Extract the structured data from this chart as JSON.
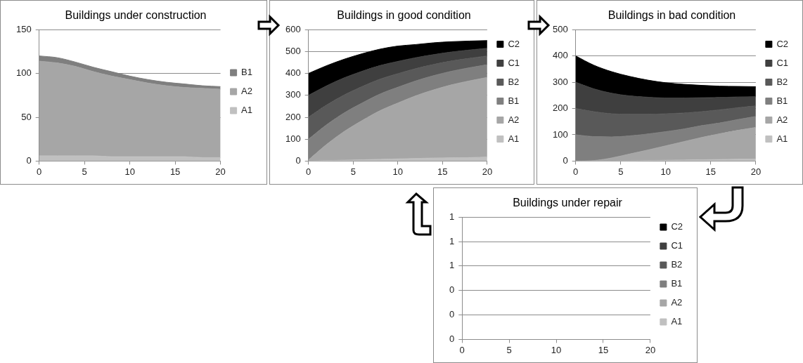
{
  "chart_data": [
    {
      "type": "area",
      "stacked": true,
      "title": "Buildings under construction",
      "x": [
        0,
        2,
        4,
        6,
        8,
        10,
        12,
        14,
        16,
        18,
        20
      ],
      "xlim": [
        0,
        20
      ],
      "xticks": [
        0,
        5,
        10,
        15,
        20
      ],
      "ylim": [
        0,
        150
      ],
      "yticks": [
        0,
        50,
        100,
        150
      ],
      "grid": "y",
      "legend": "right",
      "series": [
        {
          "name": "A1",
          "color": "#c0c0c0",
          "values": [
            6,
            6,
            6,
            6,
            5,
            5,
            5,
            5,
            5,
            4,
            4
          ]
        },
        {
          "name": "A2",
          "color": "#a6a6a6",
          "values": [
            108,
            106,
            102,
            96,
            92,
            88,
            84,
            81,
            79,
            79,
            78
          ]
        },
        {
          "name": "B1",
          "color": "#7f7f7f",
          "values": [
            6,
            6,
            5,
            5,
            5,
            4,
            4,
            4,
            4,
            3,
            3
          ]
        }
      ]
    },
    {
      "type": "area",
      "stacked": true,
      "title": "Buildings in good condition",
      "x": [
        0,
        2,
        4,
        6,
        8,
        10,
        12,
        14,
        16,
        18,
        20
      ],
      "xlim": [
        0,
        20
      ],
      "xticks": [
        0,
        5,
        10,
        15,
        20
      ],
      "ylim": [
        0,
        600
      ],
      "yticks": [
        0,
        100,
        200,
        300,
        400,
        500,
        600
      ],
      "grid": "y",
      "legend": "right",
      "series": [
        {
          "name": "A1",
          "color": "#c0c0c0",
          "values": [
            0,
            2,
            4,
            6,
            8,
            10,
            12,
            14,
            15,
            16,
            18
          ]
        },
        {
          "name": "A2",
          "color": "#a6a6a6",
          "values": [
            5,
            73,
            131,
            179,
            222,
            255,
            286,
            311,
            333,
            350,
            364
          ]
        },
        {
          "name": "B1",
          "color": "#7f7f7f",
          "values": [
            95,
            90,
            85,
            80,
            76,
            72,
            68,
            65,
            62,
            60,
            58
          ]
        },
        {
          "name": "B2",
          "color": "#595959",
          "values": [
            100,
            90,
            82,
            75,
            68,
            62,
            56,
            51,
            47,
            43,
            40
          ]
        },
        {
          "name": "C1",
          "color": "#3f3f3f",
          "values": [
            100,
            88,
            78,
            70,
            62,
            56,
            50,
            45,
            41,
            38,
            35
          ]
        },
        {
          "name": "C2",
          "color": "#000000",
          "values": [
            100,
            92,
            85,
            80,
            75,
            70,
            60,
            54,
            47,
            41,
            35
          ]
        }
      ]
    },
    {
      "type": "area",
      "stacked": true,
      "title": "Buildings in bad condition",
      "x": [
        0,
        2,
        4,
        6,
        8,
        10,
        12,
        14,
        16,
        18,
        20
      ],
      "xlim": [
        0,
        20
      ],
      "xticks": [
        0,
        5,
        10,
        15,
        20
      ],
      "ylim": [
        0,
        500
      ],
      "yticks": [
        0,
        100,
        200,
        300,
        400,
        500
      ],
      "grid": "y",
      "legend": "right",
      "series": [
        {
          "name": "A1",
          "color": "#c0c0c0",
          "values": [
            0,
            0,
            0,
            1,
            2,
            3,
            4,
            5,
            6,
            7,
            8
          ]
        },
        {
          "name": "A2",
          "color": "#a6a6a6",
          "values": [
            0,
            2,
            12,
            26,
            40,
            55,
            70,
            85,
            98,
            110,
            120
          ]
        },
        {
          "name": "B1",
          "color": "#7f7f7f",
          "values": [
            100,
            91,
            80,
            69,
            61,
            54,
            48,
            45,
            41,
            41,
            42
          ]
        },
        {
          "name": "B2",
          "color": "#595959",
          "values": [
            100,
            95,
            88,
            82,
            75,
            68,
            61,
            53,
            50,
            45,
            40
          ]
        },
        {
          "name": "C1",
          "color": "#3f3f3f",
          "values": [
            100,
            87,
            78,
            70,
            65,
            60,
            57,
            53,
            47,
            41,
            35
          ]
        },
        {
          "name": "C2",
          "color": "#000000",
          "values": [
            100,
            90,
            82,
            74,
            65,
            58,
            52,
            47,
            43,
            40,
            38
          ]
        }
      ]
    },
    {
      "type": "area",
      "stacked": true,
      "title": "Buildings under repair",
      "categories": [
        "0",
        "5",
        "10",
        "15",
        "20"
      ],
      "ylim": [
        0,
        1
      ],
      "yticks": [
        {
          "value": 0,
          "label": "0"
        },
        {
          "value": 0.2,
          "label": "0"
        },
        {
          "value": 0.4,
          "label": "0"
        },
        {
          "value": 0.6,
          "label": "1"
        },
        {
          "value": 0.8,
          "label": "1"
        },
        {
          "value": 1,
          "label": "1"
        }
      ],
      "grid": "y",
      "legend": "right",
      "series": [
        {
          "name": "A1",
          "color": "#c0c0c0",
          "values": [
            null,
            null,
            null,
            null,
            null
          ]
        },
        {
          "name": "A2",
          "color": "#a6a6a6",
          "values": [
            null,
            null,
            null,
            null,
            null
          ]
        },
        {
          "name": "B1",
          "color": "#7f7f7f",
          "values": [
            null,
            null,
            null,
            null,
            null
          ]
        },
        {
          "name": "B2",
          "color": "#595959",
          "values": [
            null,
            null,
            null,
            null,
            null
          ]
        },
        {
          "name": "C1",
          "color": "#3f3f3f",
          "values": [
            null,
            null,
            null,
            null,
            null
          ]
        },
        {
          "name": "C2",
          "color": "#000000",
          "values": [
            null,
            null,
            null,
            null,
            null
          ]
        }
      ]
    }
  ]
}
